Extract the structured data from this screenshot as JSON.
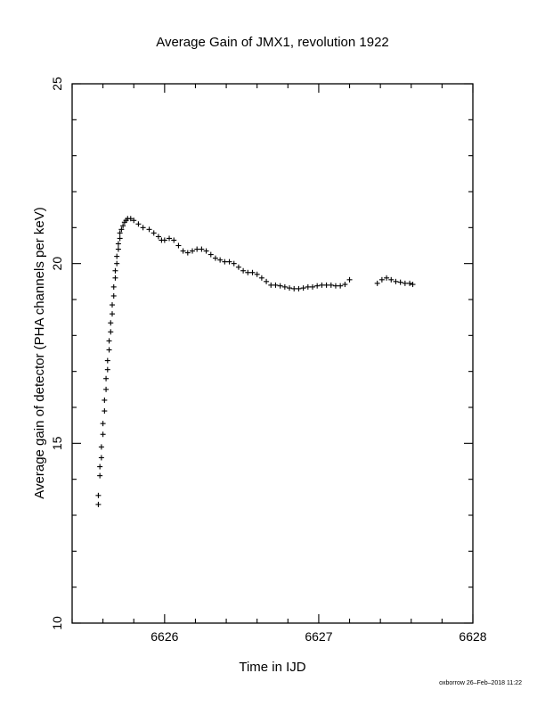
{
  "chart_data": {
    "type": "scatter",
    "title": "Average Gain of JMX1, revolution 1922",
    "xlabel": "Time in IJD",
    "ylabel": "Average gain of detector (PHA channels per keV)",
    "xlim": [
      6625.4,
      6628
    ],
    "ylim": [
      10,
      25
    ],
    "xticks": [
      6626,
      6627,
      6628
    ],
    "yticks": [
      10,
      15,
      20,
      25
    ],
    "marker": "+",
    "grid": false,
    "series": [
      {
        "values": [
          [
            6625.57,
            13.3
          ],
          [
            6625.57,
            13.55
          ],
          [
            6625.58,
            14.1
          ],
          [
            6625.58,
            14.35
          ],
          [
            6625.59,
            14.6
          ],
          [
            6625.59,
            14.9
          ],
          [
            6625.6,
            15.25
          ],
          [
            6625.6,
            15.55
          ],
          [
            6625.61,
            15.9
          ],
          [
            6625.61,
            16.2
          ],
          [
            6625.62,
            16.5
          ],
          [
            6625.62,
            16.8
          ],
          [
            6625.63,
            17.05
          ],
          [
            6625.63,
            17.3
          ],
          [
            6625.64,
            17.6
          ],
          [
            6625.64,
            17.85
          ],
          [
            6625.65,
            18.1
          ],
          [
            6625.65,
            18.35
          ],
          [
            6625.66,
            18.6
          ],
          [
            6625.66,
            18.85
          ],
          [
            6625.67,
            19.1
          ],
          [
            6625.67,
            19.35
          ],
          [
            6625.68,
            19.6
          ],
          [
            6625.68,
            19.8
          ],
          [
            6625.69,
            20.0
          ],
          [
            6625.69,
            20.2
          ],
          [
            6625.7,
            20.4
          ],
          [
            6625.7,
            20.55
          ],
          [
            6625.71,
            20.7
          ],
          [
            6625.71,
            20.85
          ],
          [
            6625.72,
            20.95
          ],
          [
            6625.73,
            21.05
          ],
          [
            6625.74,
            21.15
          ],
          [
            6625.75,
            21.2
          ],
          [
            6625.76,
            21.25
          ],
          [
            6625.78,
            21.25
          ],
          [
            6625.8,
            21.2
          ],
          [
            6625.83,
            21.1
          ],
          [
            6625.86,
            21.0
          ],
          [
            6625.9,
            20.95
          ],
          [
            6625.93,
            20.85
          ],
          [
            6625.96,
            20.75
          ],
          [
            6625.98,
            20.65
          ],
          [
            6626.0,
            20.65
          ],
          [
            6626.03,
            20.7
          ],
          [
            6626.06,
            20.65
          ],
          [
            6626.09,
            20.5
          ],
          [
            6626.12,
            20.35
          ],
          [
            6626.15,
            20.3
          ],
          [
            6626.18,
            20.35
          ],
          [
            6626.21,
            20.4
          ],
          [
            6626.24,
            20.4
          ],
          [
            6626.27,
            20.35
          ],
          [
            6626.3,
            20.25
          ],
          [
            6626.33,
            20.15
          ],
          [
            6626.36,
            20.1
          ],
          [
            6626.39,
            20.05
          ],
          [
            6626.42,
            20.05
          ],
          [
            6626.45,
            20.0
          ],
          [
            6626.48,
            19.9
          ],
          [
            6626.51,
            19.8
          ],
          [
            6626.54,
            19.75
          ],
          [
            6626.57,
            19.75
          ],
          [
            6626.6,
            19.7
          ],
          [
            6626.63,
            19.6
          ],
          [
            6626.66,
            19.5
          ],
          [
            6626.69,
            19.4
          ],
          [
            6626.72,
            19.4
          ],
          [
            6626.75,
            19.38
          ],
          [
            6626.78,
            19.35
          ],
          [
            6626.81,
            19.32
          ],
          [
            6626.84,
            19.3
          ],
          [
            6626.87,
            19.3
          ],
          [
            6626.9,
            19.32
          ],
          [
            6626.93,
            19.35
          ],
          [
            6626.96,
            19.35
          ],
          [
            6626.99,
            19.38
          ],
          [
            6627.02,
            19.4
          ],
          [
            6627.05,
            19.4
          ],
          [
            6627.08,
            19.4
          ],
          [
            6627.11,
            19.38
          ],
          [
            6627.14,
            19.38
          ],
          [
            6627.17,
            19.42
          ],
          [
            6627.2,
            19.55
          ],
          [
            6627.38,
            19.45
          ],
          [
            6627.41,
            19.55
          ],
          [
            6627.44,
            19.6
          ],
          [
            6627.47,
            19.55
          ],
          [
            6627.5,
            19.5
          ],
          [
            6627.53,
            19.48
          ],
          [
            6627.56,
            19.45
          ],
          [
            6627.59,
            19.45
          ],
          [
            6627.61,
            19.42
          ]
        ]
      }
    ]
  },
  "footer": {
    "stamp": "oxborrow 26–Feb–2018 11:22"
  }
}
